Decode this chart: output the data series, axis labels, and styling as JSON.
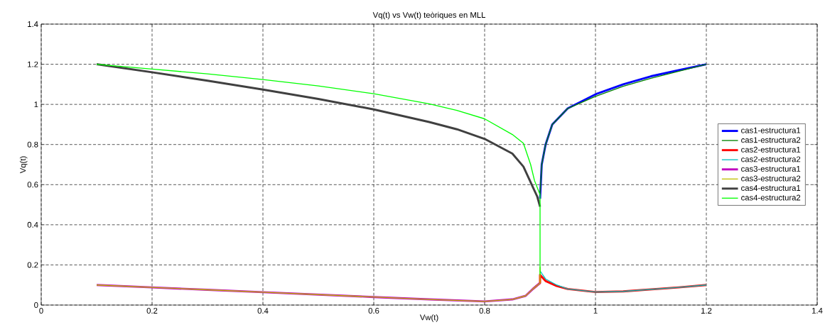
{
  "chart_data": {
    "type": "line",
    "title": "Vq(t) vs Vw(t) teòriques en MLL",
    "xlabel": "Vw(t)",
    "ylabel": "Vq(t)",
    "xlim": [
      0,
      1.4
    ],
    "ylim": [
      0,
      1.4
    ],
    "xticks": [
      0,
      0.2,
      0.4,
      0.6,
      0.8,
      1,
      1.2,
      1.4
    ],
    "yticks": [
      0,
      0.2,
      0.4,
      0.6,
      0.8,
      1,
      1.2,
      1.4
    ],
    "grid": true,
    "legend": "right",
    "line_style": "solid",
    "series": [
      {
        "name": "cas1-estructura1",
        "color": "#0000ff",
        "x": [
          0.9,
          0.903,
          0.91,
          0.922,
          0.95,
          1.0,
          1.05,
          1.1,
          1.15,
          1.2
        ],
        "values": [
          0.53,
          0.7,
          0.8,
          0.9,
          0.98,
          1.05,
          1.1,
          1.14,
          1.17,
          1.2
        ]
      },
      {
        "name": "cas1-estructura2",
        "color": "#008000",
        "x": [
          0.9,
          0.903,
          0.91,
          0.922,
          0.95,
          1.0,
          1.05,
          1.1,
          1.15,
          1.2
        ],
        "values": [
          0.55,
          0.7,
          0.8,
          0.9,
          0.98,
          1.04,
          1.09,
          1.13,
          1.165,
          1.2
        ]
      },
      {
        "name": "cas2-estructura1",
        "color": "#ff0000",
        "x": [
          0.887,
          0.9,
          0.9,
          0.91,
          0.93,
          0.95,
          1.0,
          1.05,
          1.1,
          1.15,
          1.2
        ],
        "values": [
          0.08,
          0.11,
          0.15,
          0.12,
          0.095,
          0.08,
          0.065,
          0.068,
          0.078,
          0.088,
          0.1
        ]
      },
      {
        "name": "cas2-estructura2",
        "color": "#00bfbf",
        "x": [
          0.9,
          0.91,
          0.93,
          0.95,
          1.0,
          1.05,
          1.1,
          1.15,
          1.2
        ],
        "values": [
          0.17,
          0.13,
          0.1,
          0.08,
          0.065,
          0.068,
          0.078,
          0.088,
          0.1
        ]
      },
      {
        "name": "cas3-estructura1",
        "color": "#bf00bf",
        "x": [
          0.1,
          0.2,
          0.3,
          0.4,
          0.5,
          0.6,
          0.7,
          0.8,
          0.85,
          0.874,
          0.887,
          0.9
        ],
        "values": [
          0.1,
          0.088,
          0.076,
          0.064,
          0.052,
          0.04,
          0.028,
          0.018,
          0.028,
          0.046,
          0.08,
          0.11
        ]
      },
      {
        "name": "cas3-estructura2",
        "color": "#bfbf00",
        "x": [
          0.1,
          0.2,
          0.3,
          0.4,
          0.5,
          0.6,
          0.7,
          0.8,
          0.85,
          0.874,
          0.887,
          0.9,
          0.9
        ],
        "values": [
          0.1,
          0.088,
          0.076,
          0.064,
          0.052,
          0.04,
          0.028,
          0.018,
          0.028,
          0.046,
          0.08,
          0.11,
          0.19
        ]
      },
      {
        "name": "cas4-estructura1",
        "color": "#404040",
        "x": [
          0.1,
          0.2,
          0.3,
          0.4,
          0.5,
          0.6,
          0.7,
          0.75,
          0.8,
          0.85,
          0.87,
          0.885,
          0.895,
          0.9
        ],
        "values": [
          1.2,
          1.16,
          1.118,
          1.074,
          1.027,
          0.975,
          0.912,
          0.876,
          0.828,
          0.755,
          0.69,
          0.6,
          0.54,
          0.49
        ]
      },
      {
        "name": "cas4-estructura2",
        "color": "#00ff00",
        "x": [
          0.1,
          0.2,
          0.3,
          0.4,
          0.5,
          0.6,
          0.7,
          0.75,
          0.8,
          0.85,
          0.87,
          0.883,
          0.89,
          0.9,
          0.9
        ],
        "values": [
          1.2,
          1.176,
          1.152,
          1.124,
          1.092,
          1.053,
          1.003,
          0.97,
          0.928,
          0.85,
          0.806,
          0.7,
          0.62,
          0.55,
          0.15
        ]
      }
    ]
  }
}
